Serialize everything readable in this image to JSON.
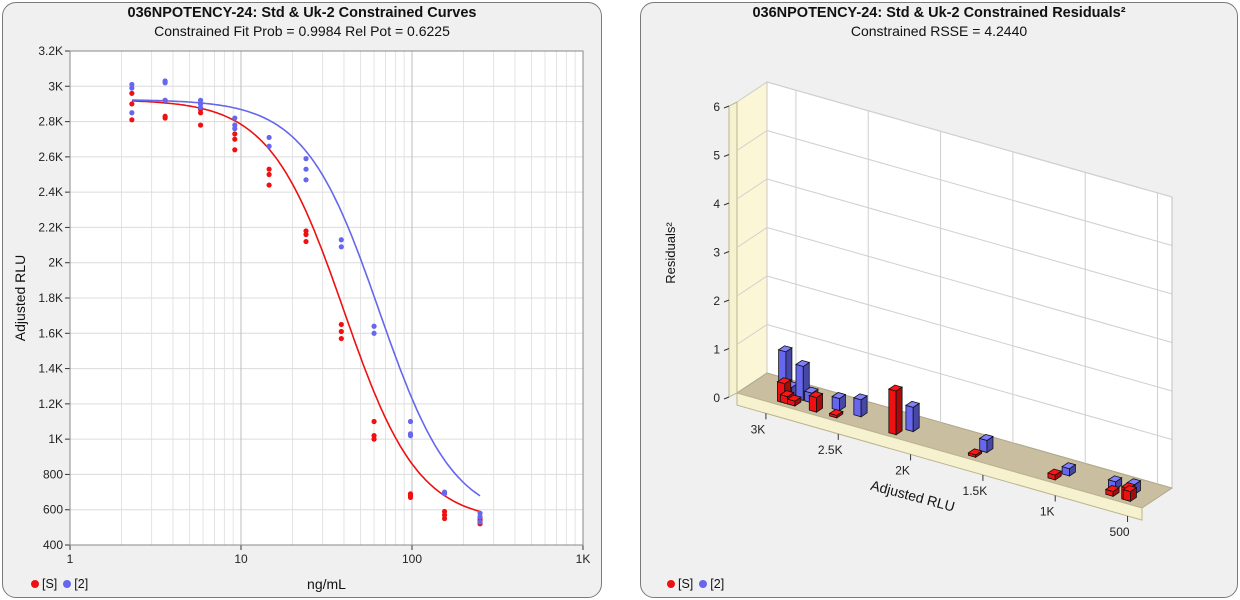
{
  "left": {
    "title": "036NPOTENCY-24: Std & Uk-2 Constrained Curves",
    "subtitle": "Constrained Fit Prob = 0.9984  Rel Pot = 0.6225"
  },
  "right": {
    "title": "036NPOTENCY-24: Std & Uk-2  Constrained Residuals²",
    "subtitle": "Constrained RSSE = 4.2440"
  },
  "legend": [
    {
      "label": "[S]",
      "color": "#ee1111"
    },
    {
      "label": "[2]",
      "color": "#6666ee"
    }
  ],
  "chart_data": [
    {
      "type": "scatter",
      "xlabel": "ng/mL",
      "ylabel": "Adjusted RLU",
      "x_scale": "log",
      "xlim": [
        1,
        1000
      ],
      "ylim": [
        400,
        3200
      ],
      "x_ticks": [
        "1",
        "10",
        "100",
        "1K"
      ],
      "y_ticks": [
        "400",
        "600",
        "800",
        "1K",
        "1.2K",
        "1.4K",
        "1.6K",
        "1.8K",
        "2K",
        "2.2K",
        "2.4K",
        "2.6K",
        "2.8K",
        "3K",
        "3.2K"
      ],
      "grid": true,
      "series": [
        {
          "name": "[S]",
          "color": "#ee1111",
          "points": [
            [
              2.3,
              2900
            ],
            [
              2.3,
              2960
            ],
            [
              2.3,
              2810
            ],
            [
              3.6,
              2920
            ],
            [
              3.6,
              2820
            ],
            [
              3.6,
              2830
            ],
            [
              5.8,
              2870
            ],
            [
              5.8,
              2850
            ],
            [
              5.8,
              2780
            ],
            [
              9.2,
              2730
            ],
            [
              9.2,
              2700
            ],
            [
              9.2,
              2640
            ],
            [
              14.6,
              2530
            ],
            [
              14.6,
              2500
            ],
            [
              14.6,
              2440
            ],
            [
              24,
              2180
            ],
            [
              24,
              2160
            ],
            [
              24,
              2120
            ],
            [
              38.6,
              1650
            ],
            [
              38.6,
              1610
            ],
            [
              38.6,
              1570
            ],
            [
              60,
              1100
            ],
            [
              60,
              1020
            ],
            [
              60,
              1000
            ],
            [
              98,
              690
            ],
            [
              98,
              680
            ],
            [
              98,
              670
            ],
            [
              155,
              590
            ],
            [
              155,
              570
            ],
            [
              155,
              550
            ],
            [
              250,
              550
            ],
            [
              250,
              540
            ],
            [
              250,
              520
            ]
          ],
          "curve": {
            "model": "4PL",
            "top": 2925,
            "bottom": 530,
            "ec50": 40,
            "slope": 2.0
          }
        },
        {
          "name": "[2]",
          "color": "#6666ee",
          "points": [
            [
              2.3,
              3010
            ],
            [
              2.3,
              2990
            ],
            [
              2.3,
              2850
            ],
            [
              3.6,
              3030
            ],
            [
              3.6,
              3020
            ],
            [
              3.6,
              2920
            ],
            [
              5.8,
              2920
            ],
            [
              5.8,
              2900
            ],
            [
              5.8,
              2880
            ],
            [
              9.2,
              2820
            ],
            [
              9.2,
              2780
            ],
            [
              9.2,
              2760
            ],
            [
              14.6,
              2710
            ],
            [
              14.6,
              2660
            ],
            [
              24,
              2590
            ],
            [
              24,
              2530
            ],
            [
              24,
              2470
            ],
            [
              38.6,
              2130
            ],
            [
              38.6,
              2090
            ],
            [
              60,
              1640
            ],
            [
              60,
              1600
            ],
            [
              98,
              1100
            ],
            [
              98,
              1030
            ],
            [
              98,
              1020
            ],
            [
              155,
              700
            ],
            [
              155,
              690
            ],
            [
              250,
              580
            ],
            [
              250,
              560
            ],
            [
              250,
              530
            ]
          ],
          "curve": {
            "model": "4PL",
            "top": 2925,
            "bottom": 530,
            "ec50": 64.26,
            "slope": 2.0
          }
        }
      ]
    },
    {
      "type": "bar",
      "subtype": "3d",
      "xlabel": "Adjusted RLU",
      "ylabel": "Residuals²",
      "xlim": [
        3200,
        400
      ],
      "ylim": [
        0,
        6
      ],
      "x_ticks": [
        "3K",
        "2.5K",
        "2K",
        "1.5K",
        "1K",
        "500"
      ],
      "y_ticks": [
        "0",
        "1",
        "2",
        "3",
        "4",
        "5",
        "6"
      ],
      "grid": true,
      "series": [
        {
          "name": "[S]",
          "color": "#ee1111",
          "points": [
            [
              2920,
              0.4
            ],
            [
              2900,
              0.15
            ],
            [
              2850,
              0.1
            ],
            [
              2700,
              0.3
            ],
            [
              2560,
              0.05
            ],
            [
              2150,
              0.9
            ],
            [
              1600,
              0.05
            ],
            [
              1050,
              0.1
            ],
            [
              650,
              0.1
            ],
            [
              540,
              0.25
            ],
            [
              530,
              0.2
            ]
          ]
        },
        {
          "name": "[2]",
          "color": "#6666ee",
          "points": [
            [
              2970,
              0.9
            ],
            [
              2930,
              0.2
            ],
            [
              2850,
              0.7
            ],
            [
              2790,
              0.2
            ],
            [
              2600,
              0.25
            ],
            [
              2450,
              0.35
            ],
            [
              2090,
              0.5
            ],
            [
              1580,
              0.25
            ],
            [
              1010,
              0.15
            ],
            [
              690,
              0.15
            ],
            [
              560,
              0.2
            ]
          ]
        }
      ]
    }
  ]
}
